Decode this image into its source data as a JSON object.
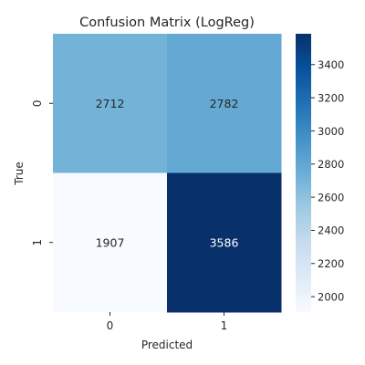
{
  "chart_data": {
    "type": "heatmap",
    "title": "Confusion Matrix (LogReg)",
    "xlabel": "Predicted",
    "ylabel": "True",
    "x_categories": [
      "0",
      "1"
    ],
    "y_categories": [
      "0",
      "1"
    ],
    "values": [
      [
        2712,
        2782
      ],
      [
        1907,
        3586
      ]
    ],
    "colormap": "Blues",
    "colorbar": {
      "vmin": 1907,
      "vmax": 3586,
      "ticks": [
        "2000",
        "2200",
        "2400",
        "2600",
        "2800",
        "3000",
        "3200",
        "3400"
      ]
    },
    "cell_label_colors": {
      "light": "#262626",
      "dark": "#ffffff"
    }
  }
}
